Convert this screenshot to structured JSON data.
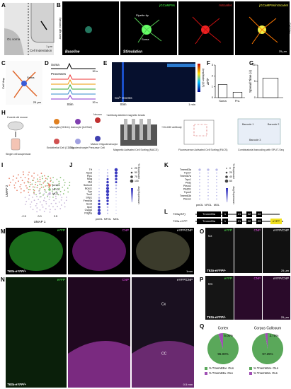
{
  "figure": {
    "panel_labels": [
      "A",
      "B",
      "C",
      "D",
      "E",
      "F",
      "G",
      "H",
      "I",
      "J",
      "K",
      "L",
      "M",
      "N",
      "O",
      "P",
      "Q"
    ],
    "a": {
      "soma": "OL soma",
      "indent": "Cell Indentation",
      "scale": "1 μm"
    },
    "b": {
      "y_label": "Average Intensity",
      "pipette": "Pipette tip",
      "soma": "Soma",
      "baseline": "Baseline",
      "stimulation": "Stimulation",
      "gcamp": "jGCaMP8s",
      "mscarlet": "mScarlet",
      "merge": "jGCaMP8s/mScarlet",
      "cell_map": "Cell Map",
      "scale": "25 μm"
    },
    "c": {
      "y_label": "Cell Map",
      "soma": "Soma",
      "scale": "25 μm"
    },
    "d": {
      "soma": "Soma",
      "processes": "Processes",
      "stim": "Stim",
      "scale_top": "30 s",
      "scale_bottom": "30 s"
    },
    "e": {
      "amplitude": "Amplitude (ΔF)",
      "events": "Ca²⁺ Events",
      "stim": "Stim",
      "scale": "1 min"
    },
    "h": {
      "mouse": "8 week old mouse",
      "suspension": "Single cell suspension",
      "microglia": "Microglia (CD11b)",
      "astrocyte": "Astrocyte (ACSA2)",
      "neuron": "Neuron",
      "endothelial": "Endothelial Cell (CD31)",
      "opc": "Oligodendrocyte Precursor Cell",
      "mature": "Mature Oligodendrocyte",
      "beads": "+antibody-labeled magnetic beads",
      "macs": "Magnetic Activated Cell Sorting (MACS)",
      "o4": "+O4-630 antibody",
      "facs": "Fluorescence Activated Cell Sorting (FACS)",
      "barcode1": "Barcode 1",
      "barcode2": "Barcode 2",
      "barcode3": "Barcode 3",
      "split": "Combinatorial barcoding with SPLIT-Seq"
    },
    "i": {
      "x_label": "UMAP 1",
      "y_label": "UMAP 2",
      "legend": [
        "pmOL",
        "NFOL",
        "MOL"
      ],
      "x_tick_labels": [
        "-2.5",
        "0.0",
        "2.5"
      ]
    },
    "j": {
      "genes": [
        "Trf",
        "Apod",
        "Plp1",
        "Mog",
        "Mal",
        "Serinc5",
        "Bcas1",
        "Fyn",
        "Tns3",
        "Sfrp1",
        "Frmd4a",
        "Sox6",
        "Itpr2",
        "Cspg4",
        "Pdgfra"
      ],
      "groups": [
        "pmOL",
        "NFOL",
        "MOL"
      ],
      "size_title": "% Expressed",
      "size_labels": [
        "25",
        "50",
        "75",
        "100"
      ],
      "color_title": "Avg Expression"
    },
    "k": {
      "genes": [
        "Tmem63a",
        "Trpm7",
        "Tmem87a",
        "Trpc1",
        "Pkd2",
        "Piezo2",
        "Pkd2l1",
        "Trpm3",
        "Tmem63b",
        "Piezo1"
      ],
      "groups": [
        "pmOL",
        "NFOL",
        "MOL"
      ],
      "size_title": "% Expressed",
      "size_labels": [
        "0",
        "20",
        "40",
        "60"
      ],
      "color_title": "Avg Expression"
    },
    "l": {
      "wt": "T63a(WT)",
      "ki": "T63a-eYFP",
      "gene": "Tmem63a",
      "exons": [
        "1",
        "21",
        "22",
        "23"
      ],
      "eyfp": "eYFP"
    },
    "m": {
      "eyfp": "eYFP",
      "cnp": "CNP",
      "merge": "eYFP/CNP",
      "genotype": "T63a-eYFP/+",
      "scale": "1mm"
    },
    "n": {
      "eyfp": "eYFP",
      "cnp": "CNP",
      "merge": "eYFP/CNP",
      "cx": "Cx",
      "cc": "CC",
      "genotype": "T63a-eYFP/+",
      "scale": "0.5 mm"
    },
    "o": {
      "eyfp": "eYFP",
      "cnp": "CNP",
      "merge": "eYFP/CNP",
      "region": "Cx",
      "genotype": "T63a-eYFP/+",
      "scale": "25 μm"
    },
    "p": {
      "eyfp": "eYFP",
      "cnp": "CNP",
      "merge": "eYFP/CNP",
      "region": "CC",
      "genotype": "T63a-eYFP/+",
      "scale": "25 μm"
    }
  },
  "chart_data": [
    {
      "type": "bar",
      "y_label": "ΔF/F",
      "categories": [
        "Soma",
        "Pro."
      ],
      "values": [
        1.2,
        0.5
      ],
      "ylim": [
        0,
        3
      ],
      "yticks": [
        0,
        1,
        2,
        3
      ],
      "color": "#ffffff"
    },
    {
      "type": "bar",
      "y_label": "Spread Time (s)",
      "categories": [
        null
      ],
      "values": [
        6
      ],
      "ylim": [
        0,
        10
      ],
      "yticks": [
        0,
        5,
        10
      ],
      "color": "#ffffff"
    },
    {
      "type": "pie",
      "title": "Cortex",
      "categories": [
        "% Tmem63a+ OLs",
        "% Tmem63a- OLs"
      ],
      "values": [
        95,
        5
      ],
      "value_labels": [
        "95.00%",
        "5.00%"
      ],
      "colors": [
        "#5aa85a",
        "#a050b4"
      ]
    },
    {
      "type": "pie",
      "title": "Corpus Callosum",
      "categories": [
        "% Tmem63a+ OLs",
        "% Tmem63a- OLs"
      ],
      "values": [
        97.25,
        2.75
      ],
      "value_labels": [
        "97.25%",
        "2.75%"
      ],
      "colors": [
        "#5aa85a",
        "#a050b4"
      ]
    }
  ]
}
